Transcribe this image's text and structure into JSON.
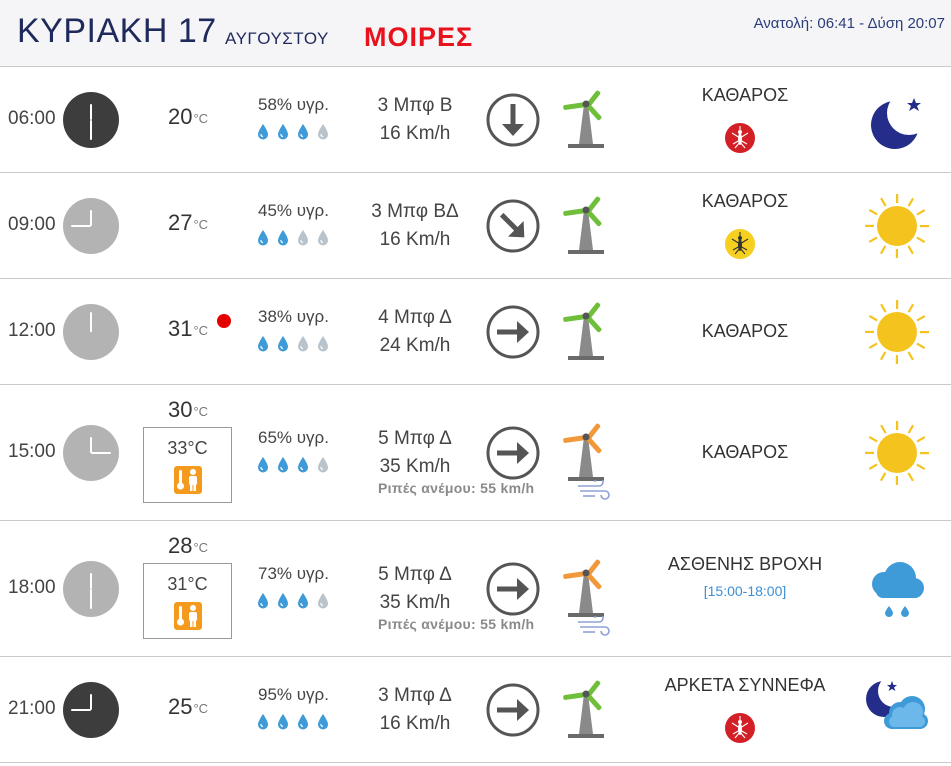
{
  "header": {
    "day": "ΚΥΡΙΑΚΗ 17",
    "month": "ΑΥΓΟΥΣΤΟΥ",
    "location": "ΜΟΙΡΕΣ",
    "sun": "Ανατολή: 06:41  - Δύση 20:07"
  },
  "colors": {
    "header_text": "#1f2a5c",
    "location": "#e8121c",
    "turbine_green": "#6fbf3a",
    "turbine_orange": "#f0983a",
    "drop_blue": "#3f9bd8",
    "drop_gray": "#b8c3cc",
    "sun_yellow": "#f5c31e",
    "mosquito_red": "#d31f26",
    "mosquito_yellow": "#f5d020",
    "feels_orange": "#f39a1f",
    "period_blue": "#3b8fd6"
  },
  "rows": [
    {
      "time": "06:00",
      "clock_icon": "clock-night-icon",
      "temp": "20",
      "unit": "°C",
      "humidity": "58% υγρ.",
      "drops_filled": 3,
      "wind": "3 Μπφ Β",
      "speed": "16 Km/h",
      "direction_icon": "arrow-down-icon",
      "turbine": "green",
      "condition": "ΚΑΘΑΡΟΣ",
      "mosquito": "red",
      "weather_icon": "moon-icon"
    },
    {
      "time": "09:00",
      "clock_icon": "clock-day-icon",
      "temp": "27",
      "unit": "°C",
      "humidity": "45% υγρ.",
      "drops_filled": 2,
      "wind": "3 Μπφ ΒΔ",
      "speed": "16 Km/h",
      "direction_icon": "arrow-down-right-icon",
      "turbine": "green",
      "condition": "ΚΑΘΑΡΟΣ",
      "mosquito": "yellow",
      "weather_icon": "sun-icon"
    },
    {
      "time": "12:00",
      "clock_icon": "clock-day-icon",
      "temp": "31",
      "unit": "°C",
      "hot": true,
      "humidity": "38% υγρ.",
      "drops_filled": 2,
      "wind": "4 Μπφ Δ",
      "speed": "24 Km/h",
      "direction_icon": "arrow-right-icon",
      "turbine": "green",
      "condition": "ΚΑΘΑΡΟΣ",
      "weather_icon": "sun-icon"
    },
    {
      "time": "15:00",
      "clock_icon": "clock-day-icon",
      "temp": "30",
      "unit": "°C",
      "feels_like": "33°C",
      "humidity": "65% υγρ.",
      "drops_filled": 3,
      "wind": "5 Μπφ Δ",
      "speed": "35 Km/h",
      "direction_icon": "arrow-right-icon",
      "turbine": "orange",
      "gusts": "Ριπές ανέμου: 55 km/h",
      "condition": "ΚΑΘΑΡΟΣ",
      "weather_icon": "sun-icon"
    },
    {
      "time": "18:00",
      "clock_icon": "clock-day-icon",
      "temp": "28",
      "unit": "°C",
      "feels_like": "31°C",
      "humidity": "73% υγρ.",
      "drops_filled": 3,
      "wind": "5 Μπφ Δ",
      "speed": "35 Km/h",
      "direction_icon": "arrow-right-icon",
      "turbine": "orange",
      "gusts": "Ριπές ανέμου: 55 km/h",
      "condition": "ΑΣΘΕΝΗΣ ΒΡΟΧΗ",
      "period": "[15:00-18:00]",
      "weather_icon": "rain-cloud-icon"
    },
    {
      "time": "21:00",
      "clock_icon": "clock-night-icon",
      "temp": "25",
      "unit": "°C",
      "humidity": "95% υγρ.",
      "drops_filled": 4,
      "wind": "3 Μπφ Δ",
      "speed": "16 Km/h",
      "direction_icon": "arrow-right-icon",
      "turbine": "green",
      "condition": "ΑΡΚΕΤΑ ΣΥΝΝΕΦΑ",
      "mosquito": "red",
      "weather_icon": "moon-cloud-icon"
    }
  ]
}
